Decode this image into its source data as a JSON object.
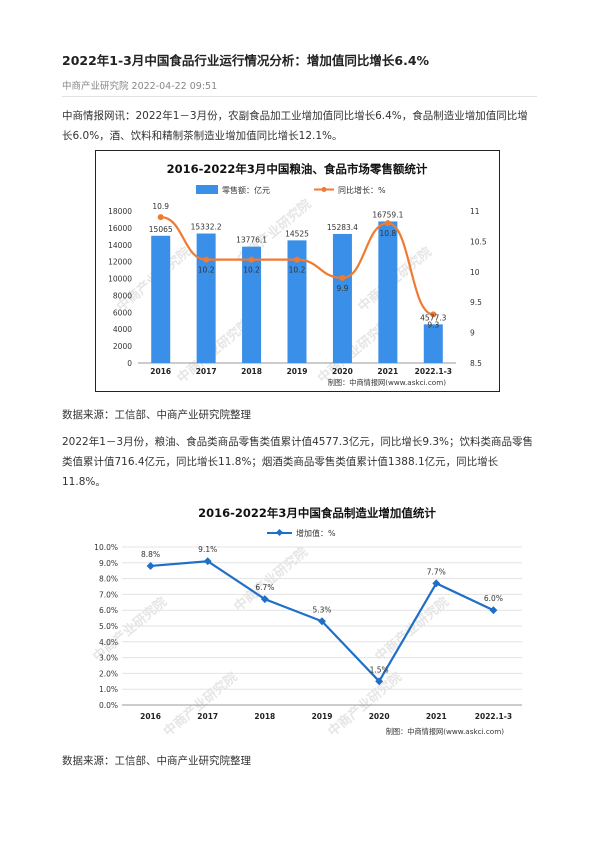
{
  "article": {
    "title": "2022年1-3月中国食品行业运行情况分析：增加值同比增长6.4%",
    "meta": "中商产业研究院 2022-04-22 09:51",
    "paragraph1": "中商情报网讯：2022年1－3月份，农副食品加工业增加值同比增长6.4%，食品制造业增加值同比增长6.0%，酒、饮料和精制茶制造业增加值同比增长12.1%。",
    "source1": "数据来源：工信部、中商产业研究院整理",
    "paragraph2": "2022年1－3月份，粮油、食品类商品零售类值累计值4577.3亿元，同比增长9.3%；饮料类商品零售类值累计值716.4亿元，同比增长11.8%；烟酒类商品零售类值累计值1388.1亿元，同比增长11.8%。",
    "source2": "数据来源：工信部、中商产业研究院整理"
  },
  "chart_data": [
    {
      "type": "bar",
      "title": "2016-2022年3月中国粮油、食品市场零售额统计",
      "categories": [
        "2016",
        "2017",
        "2018",
        "2019",
        "2020",
        "2021",
        "2022.1-3"
      ],
      "series": [
        {
          "name": "零售额：亿元",
          "type": "bar",
          "axis": "left",
          "values": [
            15065,
            15332.2,
            13776.1,
            14525,
            15283.4,
            16759.1,
            4577.3
          ],
          "labels": [
            "15065",
            "15332.2",
            "13776.1",
            "14525",
            "15283.4",
            "16759.1",
            "4577.3"
          ]
        },
        {
          "name": "同比增长：%",
          "type": "line",
          "axis": "right",
          "values": [
            10.9,
            10.2,
            10.2,
            10.2,
            9.9,
            10.8,
            9.3
          ],
          "labels": [
            "10.9",
            "10.2",
            "10.2",
            "10.2",
            "9.9",
            "10.8",
            "9.3"
          ]
        }
      ],
      "yleft": {
        "min": 0,
        "max": 18000,
        "ticks": [
          "0",
          "2000",
          "4000",
          "6000",
          "8000",
          "10000",
          "12000",
          "14000",
          "16000",
          "18000"
        ]
      },
      "yright": {
        "min": 8.5,
        "max": 11,
        "ticks": [
          "8.5",
          "9",
          "9.5",
          "10",
          "10.5",
          "11"
        ]
      },
      "credit": "制图：中商情报网(www.askci.com)",
      "colors": {
        "bar": "#3a8fe8",
        "line": "#f07a30"
      },
      "legend": "top"
    },
    {
      "type": "line",
      "title": "2016-2022年3月中国食品制造业增加值统计",
      "categories": [
        "2016",
        "2017",
        "2018",
        "2019",
        "2020",
        "2021",
        "2022.1-3"
      ],
      "series": [
        {
          "name": "增加值：%",
          "values": [
            8.8,
            9.1,
            6.7,
            5.3,
            1.5,
            7.7,
            6.0
          ],
          "labels": [
            "8.8%",
            "9.1%",
            "6.7%",
            "5.3%",
            "1.5%",
            "7.7%",
            "6.0%"
          ]
        }
      ],
      "ylim": [
        0,
        10
      ],
      "yticks": [
        "0.0%",
        "1.0%",
        "2.0%",
        "3.0%",
        "4.0%",
        "5.0%",
        "6.0%",
        "7.0%",
        "8.0%",
        "9.0%",
        "10.0%"
      ],
      "credit": "制图：中商情报网(www.askci.com)",
      "colors": {
        "line": "#1f6fc8"
      },
      "grid": true,
      "legend": "top"
    }
  ],
  "watermark": "中商产业研究院"
}
